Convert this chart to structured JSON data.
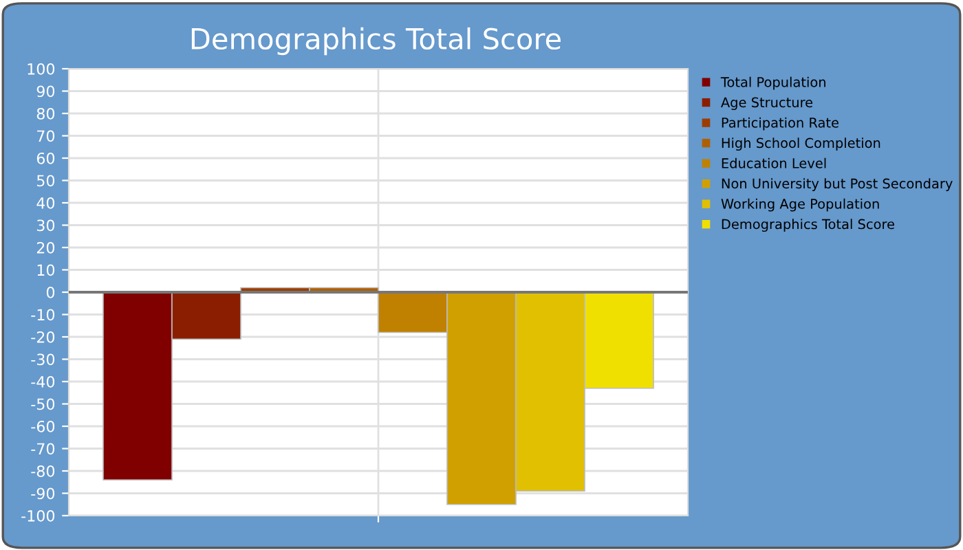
{
  "chart_data": {
    "type": "bar",
    "title": "Demographics Total Score",
    "categories": [
      null
    ],
    "series": [
      {
        "name": "Total Population",
        "color": "#800000",
        "values": [
          -84
        ]
      },
      {
        "name": "Age Structure",
        "color": "#8b1e00",
        "values": [
          -21
        ]
      },
      {
        "name": "Participation Rate",
        "color": "#9c3c00",
        "values": [
          2
        ]
      },
      {
        "name": "High School Completion",
        "color": "#b05f00",
        "values": [
          2
        ]
      },
      {
        "name": "Education Level",
        "color": "#c08000",
        "values": [
          -18
        ]
      },
      {
        "name": "Non University but Post Secondary",
        "color": "#d0a000",
        "values": [
          -95
        ]
      },
      {
        "name": "Working Age Population",
        "color": "#e0c000",
        "values": [
          -89
        ]
      },
      {
        "name": "Demographics Total Score",
        "color": "#f0e000",
        "values": [
          -43
        ]
      }
    ],
    "ylim": [
      -100,
      100
    ],
    "yticks": [
      -100,
      -90,
      -80,
      -70,
      -60,
      -50,
      -40,
      -30,
      -20,
      -10,
      0,
      10,
      20,
      30,
      40,
      50,
      60,
      70,
      80,
      90,
      100
    ],
    "grid": true,
    "legend": "right",
    "tick_labels": "y"
  }
}
